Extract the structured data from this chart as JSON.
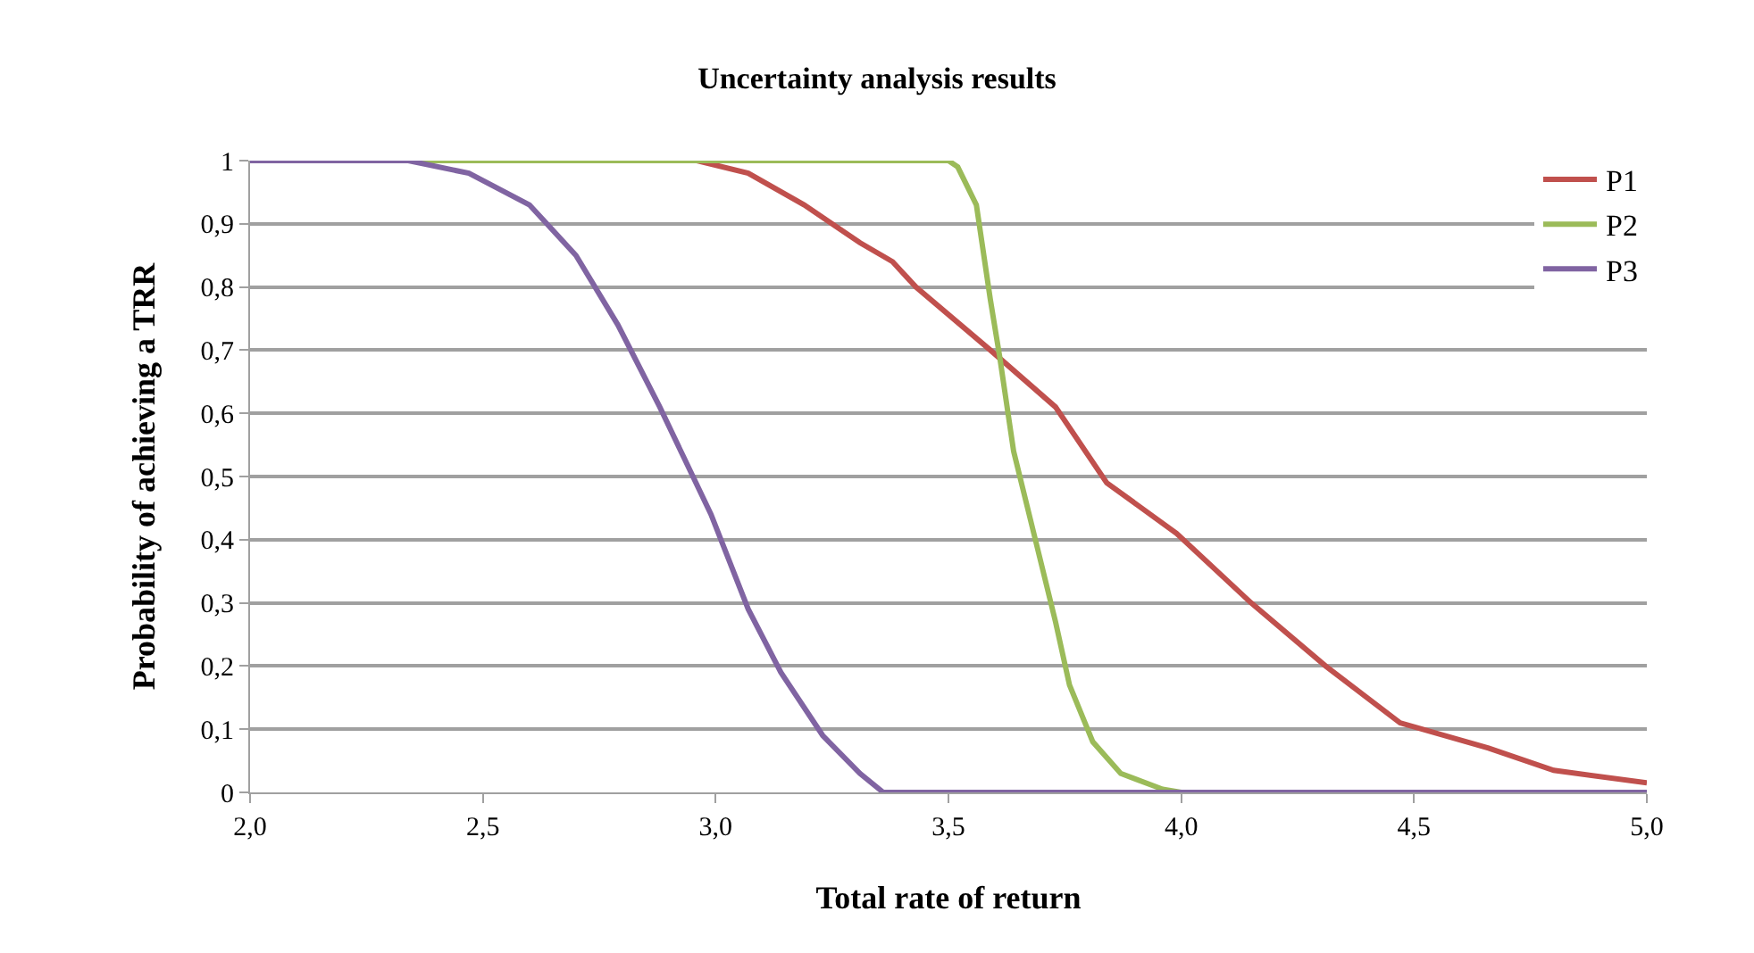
{
  "chart_data": {
    "type": "line",
    "title": "Uncertainty analysis results",
    "xlabel": "Total rate of return",
    "ylabel": "Probability of achieving a TRR",
    "series": [
      {
        "name": "P1",
        "color": "#c0504d",
        "x": [
          2.0,
          2.96,
          3.07,
          3.19,
          3.31,
          3.38,
          3.43,
          3.59,
          3.73,
          3.84,
          3.99,
          4.15,
          4.31,
          4.47,
          4.66,
          4.8,
          5.0
        ],
        "values": [
          1,
          1,
          0.98,
          0.93,
          0.87,
          0.84,
          0.8,
          0.7,
          0.61,
          0.49,
          0.41,
          0.3,
          0.2,
          0.11,
          0.07,
          0.035,
          0.015
        ]
      },
      {
        "name": "P2",
        "color": "#9bbb59",
        "x": [
          2.0,
          3.5,
          3.52,
          3.56,
          3.59,
          3.61,
          3.64,
          3.69,
          3.73,
          3.76,
          3.81,
          3.87,
          3.96,
          4.0,
          5.0
        ],
        "values": [
          1,
          1,
          0.99,
          0.93,
          0.78,
          0.69,
          0.54,
          0.39,
          0.27,
          0.17,
          0.08,
          0.03,
          0.005,
          0,
          0
        ]
      },
      {
        "name": "P3",
        "color": "#8064a2",
        "x": [
          2.0,
          2.34,
          2.47,
          2.6,
          2.7,
          2.79,
          2.88,
          2.99,
          3.07,
          3.14,
          3.23,
          3.31,
          3.36,
          5.0
        ],
        "values": [
          1,
          1,
          0.98,
          0.93,
          0.85,
          0.74,
          0.61,
          0.44,
          0.29,
          0.19,
          0.09,
          0.03,
          0,
          0
        ]
      }
    ],
    "xlim": [
      2.0,
      5.0
    ],
    "xticks": [
      {
        "value": 2.0,
        "label": "2,0"
      },
      {
        "value": 2.5,
        "label": "2,5"
      },
      {
        "value": 3.0,
        "label": "3,0"
      },
      {
        "value": 3.5,
        "label": "3,5"
      },
      {
        "value": 4.0,
        "label": "4,0"
      },
      {
        "value": 4.5,
        "label": "4,5"
      },
      {
        "value": 5.0,
        "label": "5,0"
      }
    ],
    "ylim": [
      0,
      1
    ],
    "yticks": [
      0,
      {
        "value": 0.1,
        "label": "0,1"
      },
      {
        "value": 0.2,
        "label": "0,2"
      },
      {
        "value": 0.3,
        "label": "0,3"
      },
      {
        "value": 0.4,
        "label": "0,4"
      },
      {
        "value": 0.5,
        "label": "0,5"
      },
      {
        "value": 0.6,
        "label": "0,6"
      },
      {
        "value": 0.7,
        "label": "0,7"
      },
      {
        "value": 0.8,
        "label": "0,8"
      },
      {
        "value": 0.9,
        "label": "0,9"
      },
      1
    ],
    "grid": "y",
    "legend": "top right",
    "marker": "none",
    "line_style": "solid"
  }
}
